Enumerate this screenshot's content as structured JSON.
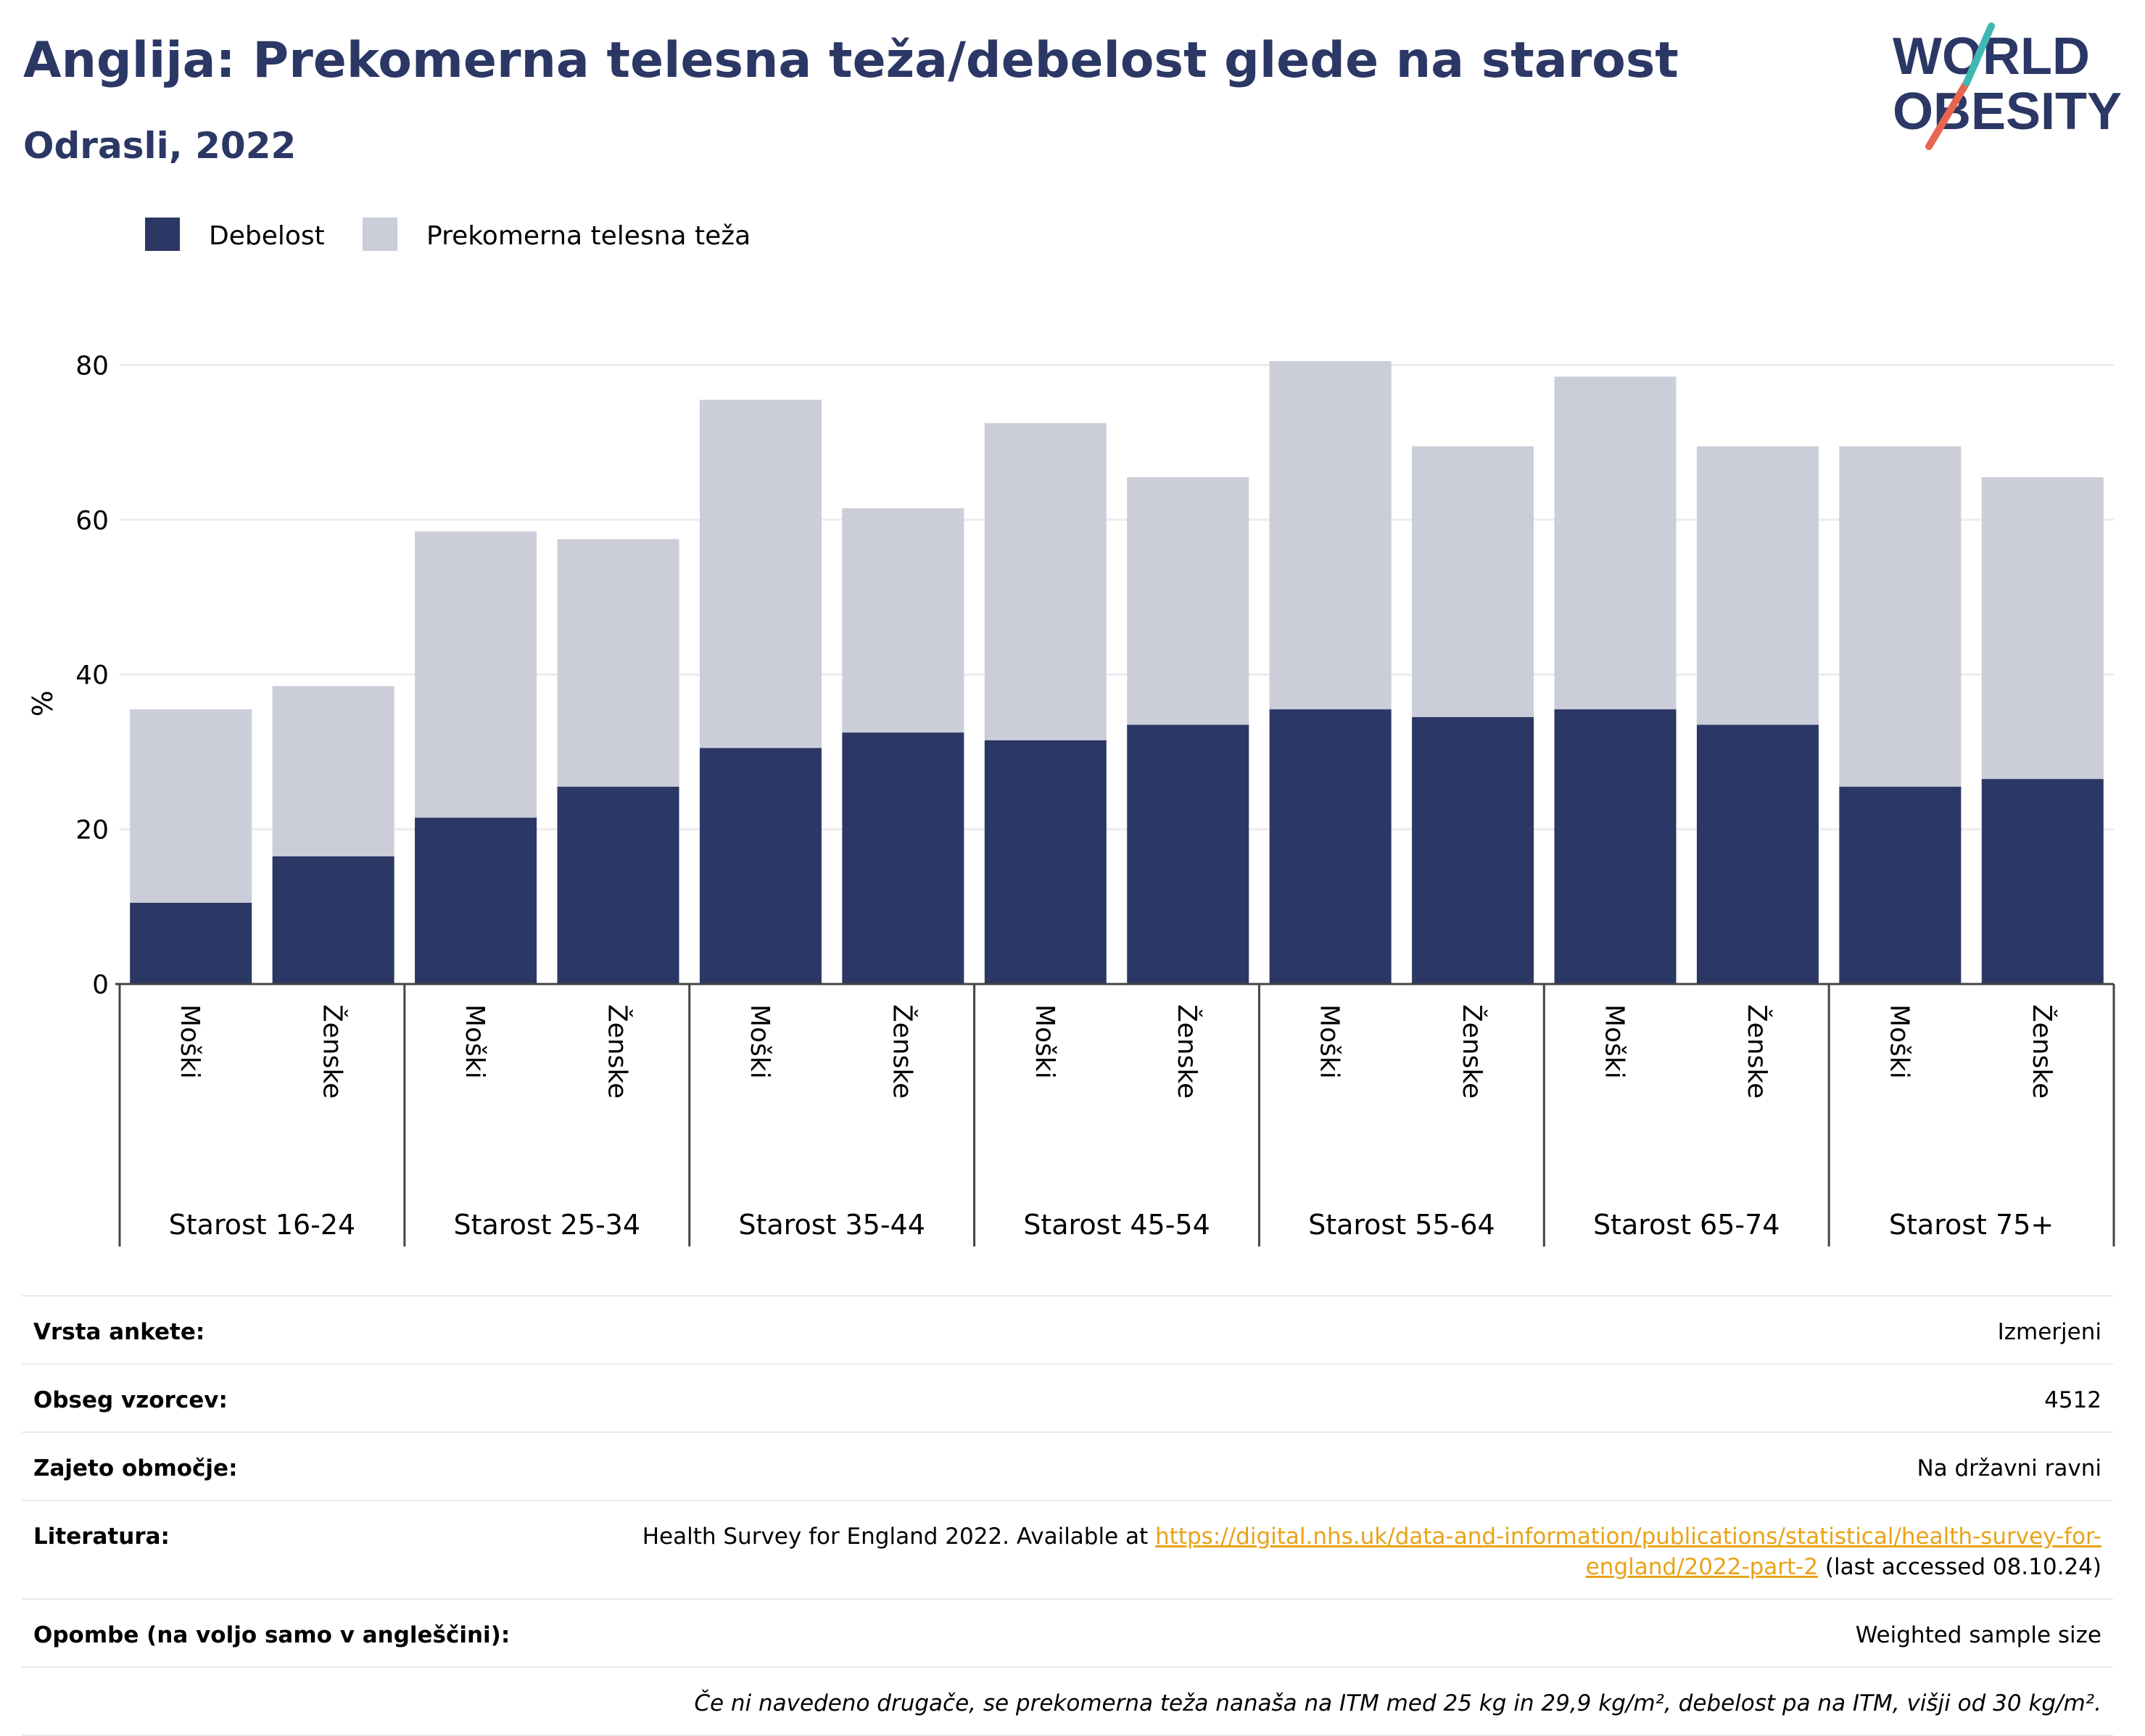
{
  "title": "Anglija: Prekomerna telesna teža/debelost glede na starost",
  "subtitle": "Odrasli, 2022",
  "logo": {
    "line1": "WORLD",
    "line2": "OBESITY"
  },
  "colors": {
    "obesity": "#2b3765",
    "overweight": "#cbcdd9",
    "title": "#2b3765",
    "link": "#e8a317"
  },
  "chart_data": {
    "type": "bar",
    "stacked": true,
    "ylabel": "%",
    "ylim": [
      0,
      85
    ],
    "yticks": [
      0,
      20,
      40,
      60,
      80
    ],
    "grid": true,
    "legend_position": "top-left",
    "groups": [
      "Starost 16-24",
      "Starost 25-34",
      "Starost 35-44",
      "Starost 45-54",
      "Starost 55-64",
      "Starost 65-74",
      "Starost 75+"
    ],
    "subcategories": [
      "Moški",
      "Ženske"
    ],
    "series": [
      {
        "name": "Debelost",
        "values": [
          10.5,
          16.5,
          21.5,
          25.5,
          30.5,
          32.5,
          31.5,
          33.5,
          35.5,
          34.5,
          35.5,
          33.5,
          25.5,
          26.5
        ]
      },
      {
        "name": "Prekomerna telesna teža",
        "values": [
          25,
          22,
          37,
          32,
          45,
          29,
          41,
          32,
          45,
          35,
          43,
          36,
          44,
          39
        ]
      }
    ]
  },
  "info": {
    "survey_type": {
      "label": "Vrsta ankete:",
      "value": "Izmerjeni"
    },
    "sample_size": {
      "label": "Obseg vzorcev:",
      "value": "4512"
    },
    "coverage": {
      "label": "Zajeto območje:",
      "value": "Na državni ravni"
    },
    "references": {
      "label": "Literatura:",
      "text_before": "Health Survey for England 2022. Available at ",
      "link": "https://digital.nhs.uk/data-and-information/publications/statistical/health-survey-for-england/2022-part-2",
      "text_after": " (last accessed 08.10.24)"
    },
    "notes": {
      "label": "Opombe (na voljo samo v angleščini):",
      "value": "Weighted sample size"
    },
    "footnote": "Če ni navedeno drugače, se prekomerna teža nanaša na ITM med 25 kg in 29,9 kg/m², debelost pa na ITM, višji od 30 kg/m²."
  }
}
